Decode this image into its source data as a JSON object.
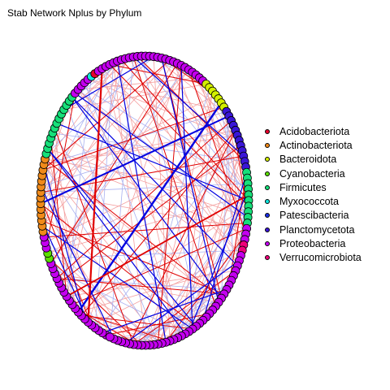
{
  "title": "Stab Network Nplus by Phylum",
  "legend": [
    {
      "label": "Acidobacteriota",
      "color": "#e8002c"
    },
    {
      "label": "Actinobacteriota",
      "color": "#f08a1a"
    },
    {
      "label": "Bacteroidota",
      "color": "#d4f000"
    },
    {
      "label": "Cyanobacteria",
      "color": "#5ce000"
    },
    {
      "label": "Firmicutes",
      "color": "#16e07a"
    },
    {
      "label": "Myxococcota",
      "color": "#10e6e0"
    },
    {
      "label": "Patescibacteria",
      "color": "#1a30e6"
    },
    {
      "label": "Planctomycetota",
      "color": "#3a16d8"
    },
    {
      "label": "Proteobacteria",
      "color": "#c400f0"
    },
    {
      "label": "Verrucomicrobiota",
      "color": "#f0007a"
    }
  ],
  "edge_colors": {
    "positive_strong": "#e00000",
    "positive_weak": "#f4a0a0",
    "negative_strong": "#0000e0",
    "negative_weak": "#a8b0f0"
  },
  "node_groups": [
    {
      "phylum": "Proteobacteria",
      "count": 20
    },
    {
      "phylum": "Cyanobacteria",
      "count": 2
    },
    {
      "phylum": "Proteobacteria",
      "count": 3
    },
    {
      "phylum": "Actinobacteriota",
      "count": 14
    },
    {
      "phylum": "Firmicutes",
      "count": 13
    },
    {
      "phylum": "Proteobacteria",
      "count": 5
    },
    {
      "phylum": "Myxococcota",
      "count": 1
    },
    {
      "phylum": "Acidobacteriota",
      "count": 1
    },
    {
      "phylum": "Proteobacteria",
      "count": 28
    },
    {
      "phylum": "Bacteroidota",
      "count": 7
    },
    {
      "phylum": "Planctomycetota",
      "count": 12
    },
    {
      "phylum": "Firmicutes",
      "count": 10
    },
    {
      "phylum": "Proteobacteria",
      "count": 3
    },
    {
      "phylum": "Verrucomicrobiota",
      "count": 2
    },
    {
      "phylum": "Proteobacteria",
      "count": 40
    }
  ]
}
